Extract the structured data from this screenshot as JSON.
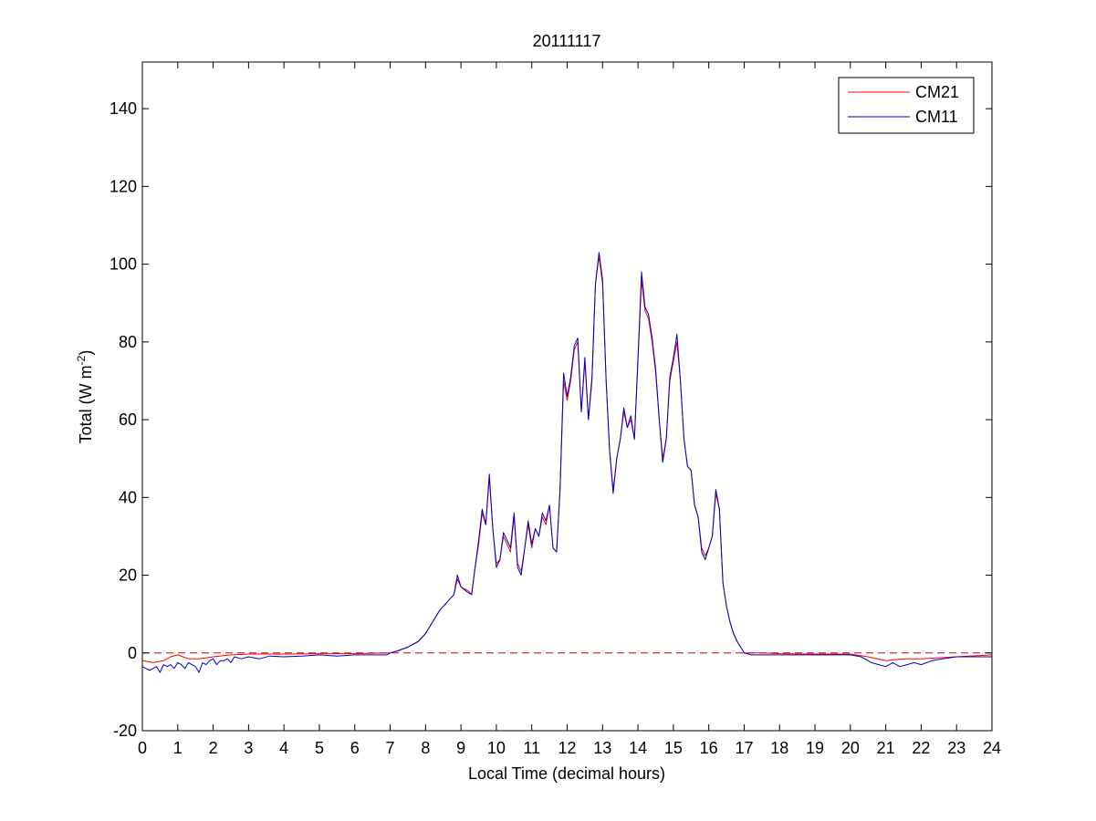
{
  "chart_data": {
    "type": "line",
    "title": "20111117",
    "xlabel": "Local Time (decimal hours)",
    "ylabel": {
      "main": "Total (W m",
      "sup": "-2",
      "close": ")"
    },
    "xlim": [
      0,
      24
    ],
    "ylim": [
      -20,
      152
    ],
    "xticks": [
      "0",
      "1",
      "2",
      "3",
      "4",
      "5",
      "6",
      "7",
      "8",
      "9",
      "10",
      "11",
      "12",
      "13",
      "14",
      "15",
      "16",
      "17",
      "18",
      "19",
      "20",
      "21",
      "22",
      "23",
      "24"
    ],
    "yticks": [
      "-20",
      "0",
      "20",
      "40",
      "60",
      "80",
      "100",
      "120",
      "140"
    ],
    "grid": false,
    "legend_position": "top-right",
    "reference_line": {
      "y": 0,
      "style": "dashed",
      "color": "#cc0000"
    },
    "series": [
      {
        "name": "CM21",
        "color": "#ff0000",
        "x": [
          0,
          0.3,
          0.6,
          0.8,
          1.0,
          1.3,
          1.6,
          2.0,
          2.5,
          3.0,
          4.0,
          5.0,
          6.0,
          6.9,
          7.0,
          7.2,
          7.5,
          7.8,
          8.0,
          8.2,
          8.4,
          8.6,
          8.8,
          8.9,
          9.0,
          9.2,
          9.3,
          9.4,
          9.5,
          9.6,
          9.7,
          9.8,
          9.9,
          10.0,
          10.1,
          10.2,
          10.3,
          10.4,
          10.5,
          10.6,
          10.7,
          10.8,
          10.9,
          11.0,
          11.1,
          11.2,
          11.3,
          11.4,
          11.5,
          11.6,
          11.7,
          11.8,
          11.9,
          12.0,
          12.1,
          12.2,
          12.3,
          12.4,
          12.5,
          12.6,
          12.7,
          12.8,
          12.9,
          13.0,
          13.1,
          13.2,
          13.3,
          13.4,
          13.5,
          13.6,
          13.7,
          13.8,
          13.9,
          14.0,
          14.1,
          14.2,
          14.3,
          14.4,
          14.5,
          14.6,
          14.7,
          14.8,
          14.9,
          15.0,
          15.1,
          15.2,
          15.3,
          15.4,
          15.5,
          15.6,
          15.7,
          15.8,
          15.9,
          16.0,
          16.1,
          16.2,
          16.3,
          16.4,
          16.5,
          16.6,
          16.7,
          16.8,
          16.9,
          17.0,
          17.2,
          17.5,
          18.0,
          19.0,
          20.0,
          20.5,
          21.0,
          21.5,
          22.0,
          23.0,
          24.0
        ],
        "y": [
          -2,
          -2.5,
          -2,
          -1,
          -0.5,
          -1.5,
          -1.5,
          -1,
          -0.5,
          -0.3,
          -0.3,
          -0.2,
          -0.2,
          0,
          0,
          0.5,
          1.5,
          3,
          5,
          8,
          11,
          13,
          15,
          19,
          17,
          16,
          15,
          22,
          28,
          36,
          33,
          45,
          32,
          23,
          24,
          30,
          28,
          26,
          35,
          23,
          21,
          27,
          33,
          27,
          32,
          30,
          35,
          33,
          38,
          27,
          26,
          42,
          70,
          65,
          70,
          78,
          80,
          62,
          75,
          60,
          70,
          95,
          102,
          95,
          70,
          52,
          42,
          50,
          55,
          62,
          58,
          60,
          55,
          75,
          96,
          88,
          86,
          80,
          72,
          60,
          50,
          55,
          70,
          75,
          80,
          70,
          55,
          48,
          47,
          38,
          35,
          27,
          25,
          27,
          30,
          41,
          37,
          18,
          12,
          8,
          5,
          3,
          1.5,
          0,
          0,
          0,
          -0.2,
          -0.3,
          -0.3,
          -1,
          -2,
          -1.5,
          -1.5,
          -1,
          -0.5
        ]
      },
      {
        "name": "CM11",
        "color": "#0000cc",
        "x": [
          0,
          0.1,
          0.2,
          0.4,
          0.5,
          0.6,
          0.7,
          0.8,
          0.9,
          1.0,
          1.1,
          1.2,
          1.3,
          1.4,
          1.5,
          1.6,
          1.7,
          1.8,
          1.9,
          2.0,
          2.1,
          2.2,
          2.3,
          2.4,
          2.5,
          2.6,
          2.8,
          3.0,
          3.3,
          3.6,
          4.0,
          4.5,
          5.0,
          5.5,
          6.0,
          6.5,
          6.9,
          7.0,
          7.2,
          7.5,
          7.8,
          8.0,
          8.2,
          8.4,
          8.6,
          8.8,
          8.9,
          9.0,
          9.2,
          9.3,
          9.4,
          9.5,
          9.6,
          9.7,
          9.8,
          9.9,
          10.0,
          10.1,
          10.2,
          10.3,
          10.4,
          10.5,
          10.6,
          10.7,
          10.8,
          10.9,
          11.0,
          11.1,
          11.2,
          11.3,
          11.4,
          11.5,
          11.6,
          11.7,
          11.8,
          11.9,
          12.0,
          12.1,
          12.2,
          12.3,
          12.4,
          12.5,
          12.6,
          12.7,
          12.8,
          12.9,
          13.0,
          13.1,
          13.2,
          13.3,
          13.4,
          13.5,
          13.6,
          13.7,
          13.8,
          13.9,
          14.0,
          14.1,
          14.2,
          14.3,
          14.4,
          14.5,
          14.6,
          14.7,
          14.8,
          14.9,
          15.0,
          15.1,
          15.2,
          15.3,
          15.4,
          15.5,
          15.6,
          15.7,
          15.8,
          15.9,
          16.0,
          16.1,
          16.2,
          16.3,
          16.4,
          16.5,
          16.6,
          16.7,
          16.8,
          16.9,
          17.0,
          17.2,
          17.5,
          18.0,
          18.5,
          19.0,
          19.5,
          20.0,
          20.3,
          20.6,
          20.8,
          21.0,
          21.2,
          21.4,
          21.6,
          21.8,
          22.0,
          22.3,
          22.6,
          23.0,
          23.5,
          24.0
        ],
        "y": [
          -3.5,
          -4,
          -4.5,
          -3.5,
          -5,
          -3,
          -3.5,
          -3,
          -4,
          -2.5,
          -3,
          -4,
          -2.5,
          -3,
          -3.5,
          -5,
          -2.5,
          -3,
          -2,
          -1.5,
          -3,
          -2,
          -2,
          -1.5,
          -2.5,
          -1,
          -1.5,
          -1,
          -1.5,
          -0.8,
          -1,
          -0.8,
          -0.5,
          -0.8,
          -0.5,
          -0.5,
          -0.5,
          0,
          0.5,
          1.5,
          3,
          5,
          8,
          11,
          13,
          15,
          20,
          17,
          15.5,
          15,
          22,
          29,
          37,
          33,
          46,
          32,
          22,
          24,
          31,
          29,
          27,
          36,
          22,
          20,
          27,
          34,
          28,
          32,
          30,
          36,
          34,
          38,
          27,
          26,
          42,
          72,
          66,
          71,
          79,
          81,
          62,
          76,
          60,
          71,
          95,
          103,
          96,
          70,
          52,
          41,
          50,
          55,
          63,
          58,
          61,
          55,
          76,
          98,
          89,
          87,
          81,
          73,
          60,
          49,
          55,
          71,
          76,
          82,
          70,
          55,
          48,
          47,
          38,
          35,
          26,
          24,
          27,
          30,
          42,
          37,
          18,
          12,
          8,
          5,
          3,
          1.5,
          0,
          -0.5,
          -0.5,
          -0.5,
          -0.5,
          -0.5,
          -0.5,
          -0.5,
          -1,
          -2.5,
          -3,
          -3.5,
          -2.5,
          -3.5,
          -3,
          -2.5,
          -3,
          -2,
          -1.5,
          -1,
          -1,
          -1
        ]
      }
    ]
  }
}
